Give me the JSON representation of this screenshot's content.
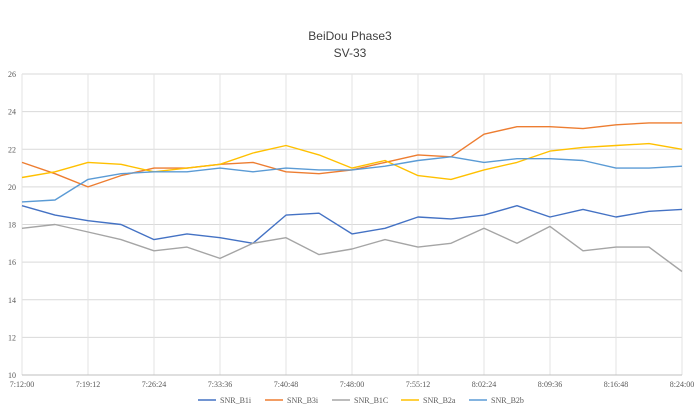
{
  "chart_data": {
    "type": "line",
    "title": "BeiDou Phase3",
    "subtitle": "SV-33",
    "xlabel": "",
    "ylabel": "",
    "ylim": [
      10,
      26
    ],
    "yticks": [
      "10",
      "12",
      "14",
      "16",
      "18",
      "20",
      "22",
      "24",
      "26"
    ],
    "xticks": [
      "7:12:00",
      "7:19:12",
      "7:26:24",
      "7:33:36",
      "7:40:48",
      "7:48:00",
      "7:55:12",
      "8:02:24",
      "8:09:36",
      "8:16:48",
      "8:24:00"
    ],
    "x_minutes": [
      0,
      3.6,
      7.2,
      10.8,
      14.4,
      18,
      21.6,
      25.2,
      28.8,
      32.4,
      36,
      39.6,
      43.2,
      46.8,
      50.4,
      54,
      57.6,
      61.2,
      64.8,
      68.4,
      72
    ],
    "grid": true,
    "legend_position": "bottom",
    "series": [
      {
        "name": "SNR_B1i",
        "color": "#4472C4",
        "values": [
          19.0,
          18.5,
          18.2,
          18.0,
          17.2,
          17.5,
          17.3,
          17.0,
          18.5,
          18.6,
          17.5,
          17.8,
          18.4,
          18.3,
          18.5,
          19.0,
          18.4,
          18.8,
          18.4,
          18.7,
          18.8
        ]
      },
      {
        "name": "SNR_B3i",
        "color": "#ED7D31",
        "values": [
          21.3,
          20.7,
          20.0,
          20.6,
          21.0,
          21.0,
          21.2,
          21.3,
          20.8,
          20.7,
          20.9,
          21.3,
          21.7,
          21.6,
          22.8,
          23.2,
          23.2,
          23.1,
          23.3,
          23.4,
          23.4
        ]
      },
      {
        "name": "SNR_B1C",
        "color": "#A5A5A5",
        "values": [
          17.8,
          18.0,
          17.6,
          17.2,
          16.6,
          16.8,
          16.2,
          17.0,
          17.3,
          16.4,
          16.7,
          17.2,
          16.8,
          17.0,
          17.8,
          17.0,
          17.9,
          16.6,
          16.8,
          16.8,
          15.5
        ]
      },
      {
        "name": "SNR_B2a",
        "color": "#FFC000",
        "values": [
          20.5,
          20.8,
          21.3,
          21.2,
          20.8,
          21.0,
          21.2,
          21.8,
          22.2,
          21.7,
          21.0,
          21.4,
          20.6,
          20.4,
          20.9,
          21.3,
          21.9,
          22.1,
          22.2,
          22.3,
          22.0
        ]
      },
      {
        "name": "SNR_B2b",
        "color": "#5B9BD5",
        "values": [
          19.2,
          19.3,
          20.4,
          20.7,
          20.8,
          20.8,
          21.0,
          20.8,
          21.0,
          20.9,
          20.9,
          21.1,
          21.4,
          21.6,
          21.3,
          21.5,
          21.5,
          21.4,
          21.0,
          21.0,
          21.1
        ]
      }
    ]
  }
}
